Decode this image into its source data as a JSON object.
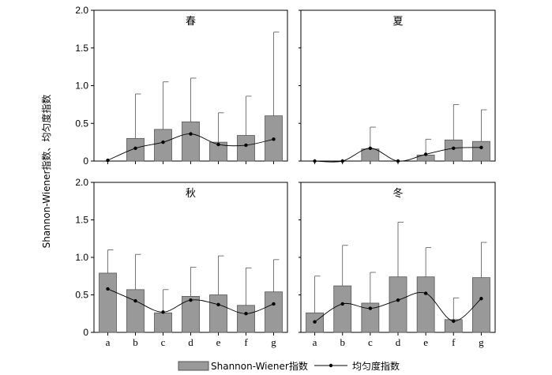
{
  "chart_data": {
    "type": "bar",
    "ylabel": "Shannon-Wiener指数、均匀度指数",
    "ylim": [
      0,
      2.0
    ],
    "yticks": [
      "0",
      "0.5",
      "1.0",
      "1.5",
      "2.0"
    ],
    "categories": [
      "a",
      "b",
      "c",
      "d",
      "e",
      "f",
      "g"
    ],
    "legend": {
      "position": "bottom-center",
      "bar_label": "Shannon-Wiener指数",
      "line_label": "均匀度指数"
    },
    "colors": {
      "bar_fill": "#999999",
      "bar_stroke": "#555555",
      "line": "#000000"
    },
    "panels": [
      {
        "season": "春",
        "shannon": [
          0.0,
          0.3,
          0.42,
          0.52,
          0.25,
          0.34,
          0.6
        ],
        "shannon_err": [
          0.0,
          0.59,
          0.63,
          0.58,
          0.39,
          0.52,
          1.11
        ],
        "evenness": [
          0.01,
          0.17,
          0.25,
          0.36,
          0.22,
          0.21,
          0.29
        ]
      },
      {
        "season": "夏",
        "shannon": [
          0.0,
          0.0,
          0.16,
          0.0,
          0.08,
          0.28,
          0.26
        ],
        "shannon_err": [
          0.0,
          0.0,
          0.29,
          0.0,
          0.21,
          0.47,
          0.42
        ],
        "evenness": [
          0.0,
          0.0,
          0.17,
          0.0,
          0.09,
          0.17,
          0.18
        ]
      },
      {
        "season": "秋",
        "shannon": [
          0.79,
          0.57,
          0.26,
          0.48,
          0.5,
          0.36,
          0.54
        ],
        "shannon_err": [
          0.31,
          0.47,
          0.31,
          0.39,
          0.52,
          0.5,
          0.43
        ],
        "evenness": [
          0.58,
          0.42,
          0.27,
          0.43,
          0.37,
          0.25,
          0.38
        ]
      },
      {
        "season": "冬",
        "shannon": [
          0.26,
          0.62,
          0.39,
          0.74,
          0.74,
          0.17,
          0.73
        ],
        "shannon_err": [
          0.49,
          0.54,
          0.41,
          0.73,
          0.39,
          0.29,
          0.47
        ],
        "evenness": [
          0.14,
          0.38,
          0.32,
          0.43,
          0.52,
          0.15,
          0.45
        ]
      }
    ]
  }
}
